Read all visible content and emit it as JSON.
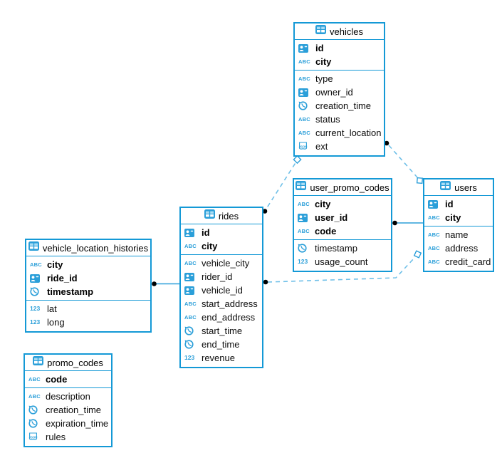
{
  "diagram": {
    "background_color": "#ffffff",
    "table_border_color": "#1499d6",
    "icon_color": "#2b9fd9",
    "dashed_line_color": "#70c0e8",
    "solid_line_color": "#2d9fd9",
    "connector_dot_color": "#000000",
    "tables": [
      {
        "title": "vehicles",
        "icon": "table-icon",
        "primary_keys": [
          {
            "type_icon": "uuid-icon",
            "name": "id"
          },
          {
            "type_icon": "string-icon",
            "name": "city"
          }
        ],
        "columns": [
          {
            "type_icon": "string-icon",
            "name": "type"
          },
          {
            "type_icon": "uuid-icon",
            "name": "owner_id"
          },
          {
            "type_icon": "time-icon",
            "name": "creation_time"
          },
          {
            "type_icon": "string-icon",
            "name": "status"
          },
          {
            "type_icon": "string-icon",
            "name": "current_location"
          },
          {
            "type_icon": "json-icon",
            "name": "ext"
          }
        ]
      },
      {
        "title": "user_promo_codes",
        "icon": "table-icon",
        "primary_keys": [
          {
            "type_icon": "string-icon",
            "name": "city"
          },
          {
            "type_icon": "uuid-icon",
            "name": "user_id"
          },
          {
            "type_icon": "string-icon",
            "name": "code"
          }
        ],
        "columns": [
          {
            "type_icon": "time-icon",
            "name": "timestamp"
          },
          {
            "type_icon": "number-icon",
            "name": "usage_count"
          }
        ]
      },
      {
        "title": "users",
        "icon": "table-icon",
        "primary_keys": [
          {
            "type_icon": "uuid-icon",
            "name": "id"
          },
          {
            "type_icon": "string-icon",
            "name": "city"
          }
        ],
        "columns": [
          {
            "type_icon": "string-icon",
            "name": "name"
          },
          {
            "type_icon": "string-icon",
            "name": "address"
          },
          {
            "type_icon": "string-icon",
            "name": "credit_card"
          }
        ]
      },
      {
        "title": "rides",
        "icon": "table-icon",
        "primary_keys": [
          {
            "type_icon": "uuid-icon",
            "name": "id"
          },
          {
            "type_icon": "string-icon",
            "name": "city"
          }
        ],
        "columns": [
          {
            "type_icon": "string-icon",
            "name": "vehicle_city"
          },
          {
            "type_icon": "uuid-icon",
            "name": "rider_id"
          },
          {
            "type_icon": "uuid-icon",
            "name": "vehicle_id"
          },
          {
            "type_icon": "string-icon",
            "name": "start_address"
          },
          {
            "type_icon": "string-icon",
            "name": "end_address"
          },
          {
            "type_icon": "time-icon",
            "name": "start_time"
          },
          {
            "type_icon": "time-icon",
            "name": "end_time"
          },
          {
            "type_icon": "number-icon",
            "name": "revenue"
          }
        ]
      },
      {
        "title": "vehicle_location_histories",
        "icon": "table-icon",
        "primary_keys": [
          {
            "type_icon": "string-icon",
            "name": "city"
          },
          {
            "type_icon": "uuid-icon",
            "name": "ride_id"
          },
          {
            "type_icon": "time-icon",
            "name": "timestamp"
          }
        ],
        "columns": [
          {
            "type_icon": "number-icon",
            "name": "lat"
          },
          {
            "type_icon": "number-icon",
            "name": "long"
          }
        ]
      },
      {
        "title": "promo_codes",
        "icon": "table-icon",
        "primary_keys": [
          {
            "type_icon": "string-icon",
            "name": "code"
          }
        ],
        "columns": [
          {
            "type_icon": "string-icon",
            "name": "description"
          },
          {
            "type_icon": "time-icon",
            "name": "creation_time"
          },
          {
            "type_icon": "time-icon",
            "name": "expiration_time"
          },
          {
            "type_icon": "json-icon",
            "name": "rules"
          }
        ]
      }
    ],
    "relations": [
      {
        "from": "vehicles",
        "to": "users",
        "style": "dashed"
      },
      {
        "from": "rides",
        "to": "vehicles",
        "style": "dashed"
      },
      {
        "from": "user_promo_codes",
        "to": "users",
        "style": "solid"
      },
      {
        "from": "rides",
        "to": "users",
        "style": "dashed"
      },
      {
        "from": "vehicle_location_histories",
        "to": "rides",
        "style": "solid"
      }
    ]
  }
}
